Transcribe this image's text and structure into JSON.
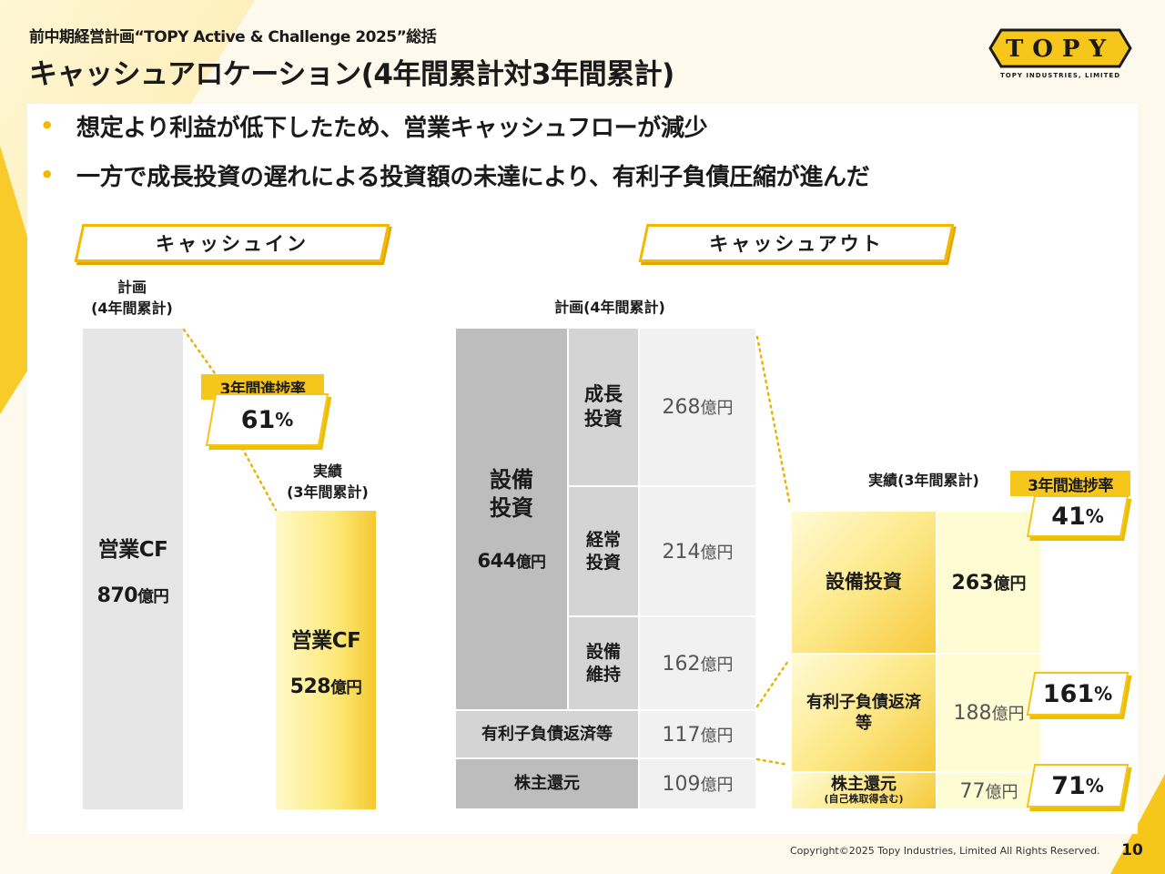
{
  "header": {
    "subtitle": "前中期経営計画“TOPY Active & Challenge 2025”総括",
    "title": "キャッシュアロケーション(4年間累計対3年間累計)"
  },
  "logo": {
    "text": "TOPY",
    "tagline": "TOPY INDUSTRIES, LIMITED",
    "colors": {
      "fill": "#f7c61a",
      "outline": "#1a1a1a"
    }
  },
  "bullets": [
    "想定より利益が低下したため、営業キャッシュフローが減少",
    "一方で成長投資の遅れによる投資額の未達により、有利子負債圧縮が進んだ"
  ],
  "cash_in": {
    "header": "キャッシュイン",
    "plan_label_line1": "計画",
    "plan_label_line2": "(4年間累計)",
    "actual_label_line1": "実績",
    "actual_label_line2": "(3年間累計)",
    "plan_bar": {
      "label": "営業CF",
      "value": "870",
      "unit": "億円"
    },
    "actual_bar": {
      "label": "営業CF",
      "value": "528",
      "unit": "億円"
    },
    "progress": {
      "label": "3年間進捗率",
      "value": "61",
      "unit": "%"
    }
  },
  "cash_out": {
    "header": "キャッシュアウト",
    "plan_label": "計画(4年間累計)",
    "actual_label": "実績(3年間累計)",
    "plan": {
      "capex": {
        "label_line1": "設備",
        "label_line2": "投資",
        "value": "644",
        "unit": "億円"
      },
      "growth": {
        "label_line1": "成長",
        "label_line2": "投資",
        "value": "268",
        "unit": "億円"
      },
      "ordinary": {
        "label_line1": "経常",
        "label_line2": "投資",
        "value": "214",
        "unit": "億円"
      },
      "maintenance": {
        "label_line1": "設備",
        "label_line2": "維持",
        "value": "162",
        "unit": "億円"
      },
      "debt": {
        "label": "有利子負債返済等",
        "value": "117",
        "unit": "億円"
      },
      "shareholder": {
        "label": "株主還元",
        "value": "109",
        "unit": "億円"
      }
    },
    "actual": {
      "capex": {
        "label": "設備投資",
        "value": "263",
        "unit": "億円"
      },
      "debt": {
        "label_line1": "有利子負債返済",
        "label_line2": "等",
        "value": "188",
        "unit": "億円"
      },
      "shareholder": {
        "label": "株主還元",
        "sublabel": "(自己株取得含む)",
        "value": "77",
        "unit": "億円"
      }
    },
    "progress_label": "3年間進捗率",
    "progress": {
      "capex": {
        "value": "41",
        "unit": "%"
      },
      "debt": {
        "value": "161",
        "unit": "%"
      },
      "shareholder": {
        "value": "71",
        "unit": "%"
      }
    }
  },
  "footer": {
    "copyright": "Copyright©2025 Topy Industries, Limited All Rights Reserved.",
    "page": "10"
  },
  "colors": {
    "accent": "#f7c61a",
    "accent_dark": "#e3a800",
    "bar_gray": "#e6e6e6",
    "cell_dark": "#bdbdbd",
    "cell_mid": "#d4d4d4",
    "cell_light": "#f1f1f1",
    "background": "#fdf9ec"
  }
}
